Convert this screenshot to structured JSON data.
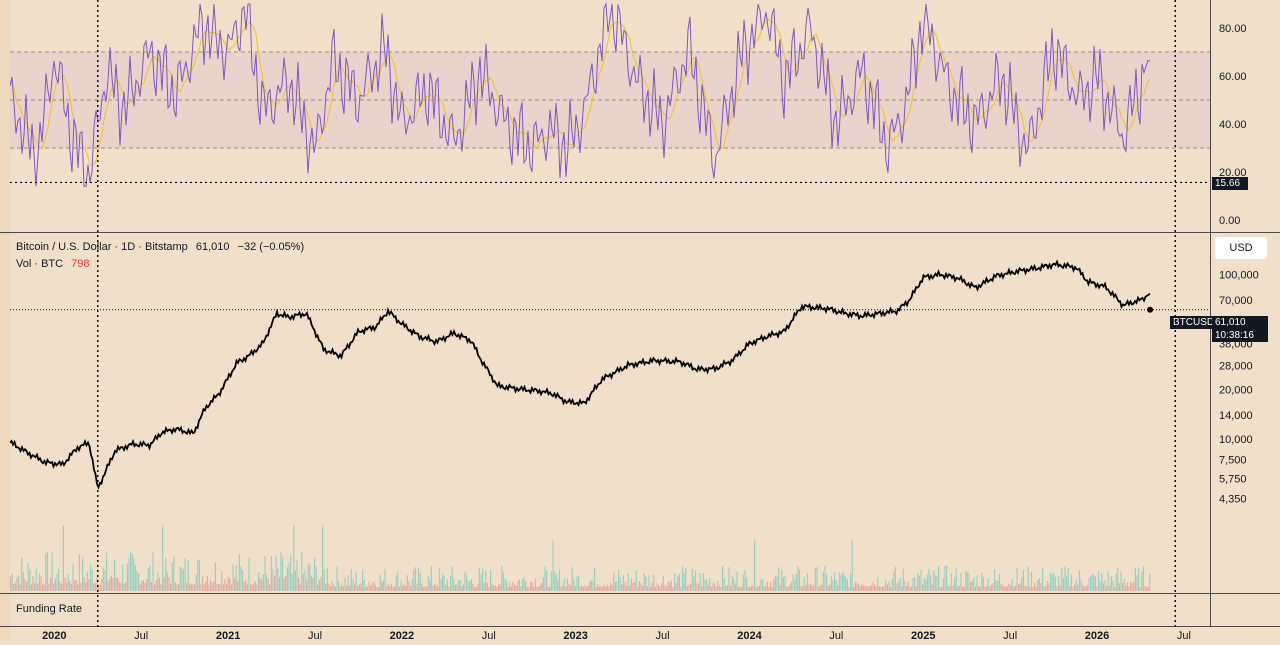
{
  "chart_data": [
    {
      "type": "line",
      "panel": "rsi",
      "yticks": [
        "80.00",
        "60.00",
        "40.00",
        "20.00",
        "0.00"
      ],
      "ylim": [
        0,
        90
      ],
      "band": [
        30,
        70
      ],
      "midline": 50,
      "last_value_label": "15.66",
      "series": [
        {
          "x": [
            2019.75,
            2019.9,
            2020.0,
            2020.1,
            2020.2,
            2020.3,
            2020.4,
            2020.55,
            2020.7,
            2020.85,
            2021.0,
            2021.1,
            2021.2,
            2021.35,
            2021.5,
            2021.6,
            2021.75,
            2021.9,
            2022.0,
            2022.15,
            2022.3,
            2022.45,
            2022.6,
            2022.75,
            2022.85,
            2022.95,
            2023.05,
            2023.2,
            2023.35,
            2023.5,
            2023.65,
            2023.8,
            2023.95,
            2024.1,
            2024.2,
            2024.35,
            2024.5,
            2024.65,
            2024.8,
            2024.9,
            2025.0,
            2025.15,
            2025.3,
            2025.45,
            2025.6,
            2025.75,
            2025.9,
            2026.0,
            2026.15,
            2026.3,
            2026.45
          ],
          "values": [
            50,
            25,
            68,
            35,
            18,
            62,
            46,
            70,
            52,
            82,
            70,
            88,
            45,
            58,
            28,
            66,
            50,
            72,
            40,
            55,
            32,
            62,
            40,
            30,
            38,
            30,
            45,
            90,
            58,
            40,
            72,
            25,
            68,
            88,
            58,
            80,
            40,
            62,
            30,
            48,
            85,
            55,
            40,
            60,
            28,
            72,
            50,
            60,
            35,
            68,
            15.66
          ]
        }
      ]
    },
    {
      "type": "line",
      "panel": "price",
      "scale": "log",
      "yticks": [
        "100,000",
        "70,000",
        "50,000",
        "38,000",
        "28,000",
        "20,000",
        "14,000",
        "10,000",
        "7,500",
        "5,750",
        "4,350"
      ],
      "xticks": [
        "2020",
        "Jul",
        "2021",
        "Jul",
        "2022",
        "Jul",
        "2023",
        "Jul",
        "2024",
        "Jul",
        "2025",
        "Jul",
        "2026",
        "Jul"
      ],
      "last_value": 61010,
      "series": [
        {
          "x": [
            2019.75,
            2019.85,
            2019.95,
            2020.05,
            2020.13,
            2020.2,
            2020.25,
            2020.35,
            2020.45,
            2020.55,
            2020.62,
            2020.7,
            2020.8,
            2020.87,
            2020.95,
            2021.05,
            2021.12,
            2021.2,
            2021.28,
            2021.35,
            2021.45,
            2021.55,
            2021.65,
            2021.75,
            2021.85,
            2021.92,
            2022.0,
            2022.1,
            2022.2,
            2022.3,
            2022.4,
            2022.45,
            2022.55,
            2022.7,
            2022.8,
            2022.87,
            2022.95,
            2023.05,
            2023.15,
            2023.3,
            2023.45,
            2023.6,
            2023.7,
            2023.8,
            2023.9,
            2024.0,
            2024.1,
            2024.2,
            2024.3,
            2024.45,
            2024.55,
            2024.65,
            2024.75,
            2024.85,
            2024.92,
            2025.0,
            2025.1,
            2025.2,
            2025.3,
            2025.42,
            2025.55,
            2025.65,
            2025.75,
            2025.82,
            2025.88,
            2025.95,
            2026.05,
            2026.15,
            2026.25,
            2026.35,
            2026.45
          ],
          "values": [
            9500,
            8200,
            7200,
            7000,
            8800,
            9500,
            5000,
            8500,
            9300,
            9200,
            11000,
            11500,
            10800,
            15500,
            19000,
            29000,
            32000,
            38000,
            58000,
            55000,
            58000,
            35000,
            32000,
            45000,
            48000,
            60000,
            50000,
            42000,
            39000,
            44000,
            39500,
            31000,
            21000,
            20000,
            19500,
            18800,
            16800,
            16500,
            23000,
            28000,
            30000,
            29500,
            26500,
            26700,
            30000,
            38000,
            42000,
            45000,
            64000,
            62000,
            58000,
            56000,
            58000,
            60000,
            70000,
            96000,
            100000,
            95000,
            83000,
            98000,
            105000,
            109000,
            115000,
            113000,
            110000,
            90000,
            84000,
            65000,
            70000,
            82000,
            61010
          ]
        }
      ]
    }
  ],
  "legend": {
    "symbol": "Bitcoin / U.S. Dollar · 1D · Bitstamp",
    "last": "61,010",
    "change": "−32 (−0.05%)",
    "vol_label": "Vol · BTC",
    "vol_value": "798"
  },
  "currency_button": "USD",
  "price_tag": {
    "symbol": "BTCUSD",
    "price": "61,010",
    "countdown": "10:38:16"
  },
  "funding_label": "Funding Rate",
  "colors": {
    "bg": "#f1e0c9",
    "rsi": "#7e57c2",
    "rsi_ma": "#f0c419",
    "band": "#ead3cb",
    "price": "#000000",
    "vol_up": "#9ccfc0",
    "vol_down": "#e8a9a3"
  }
}
